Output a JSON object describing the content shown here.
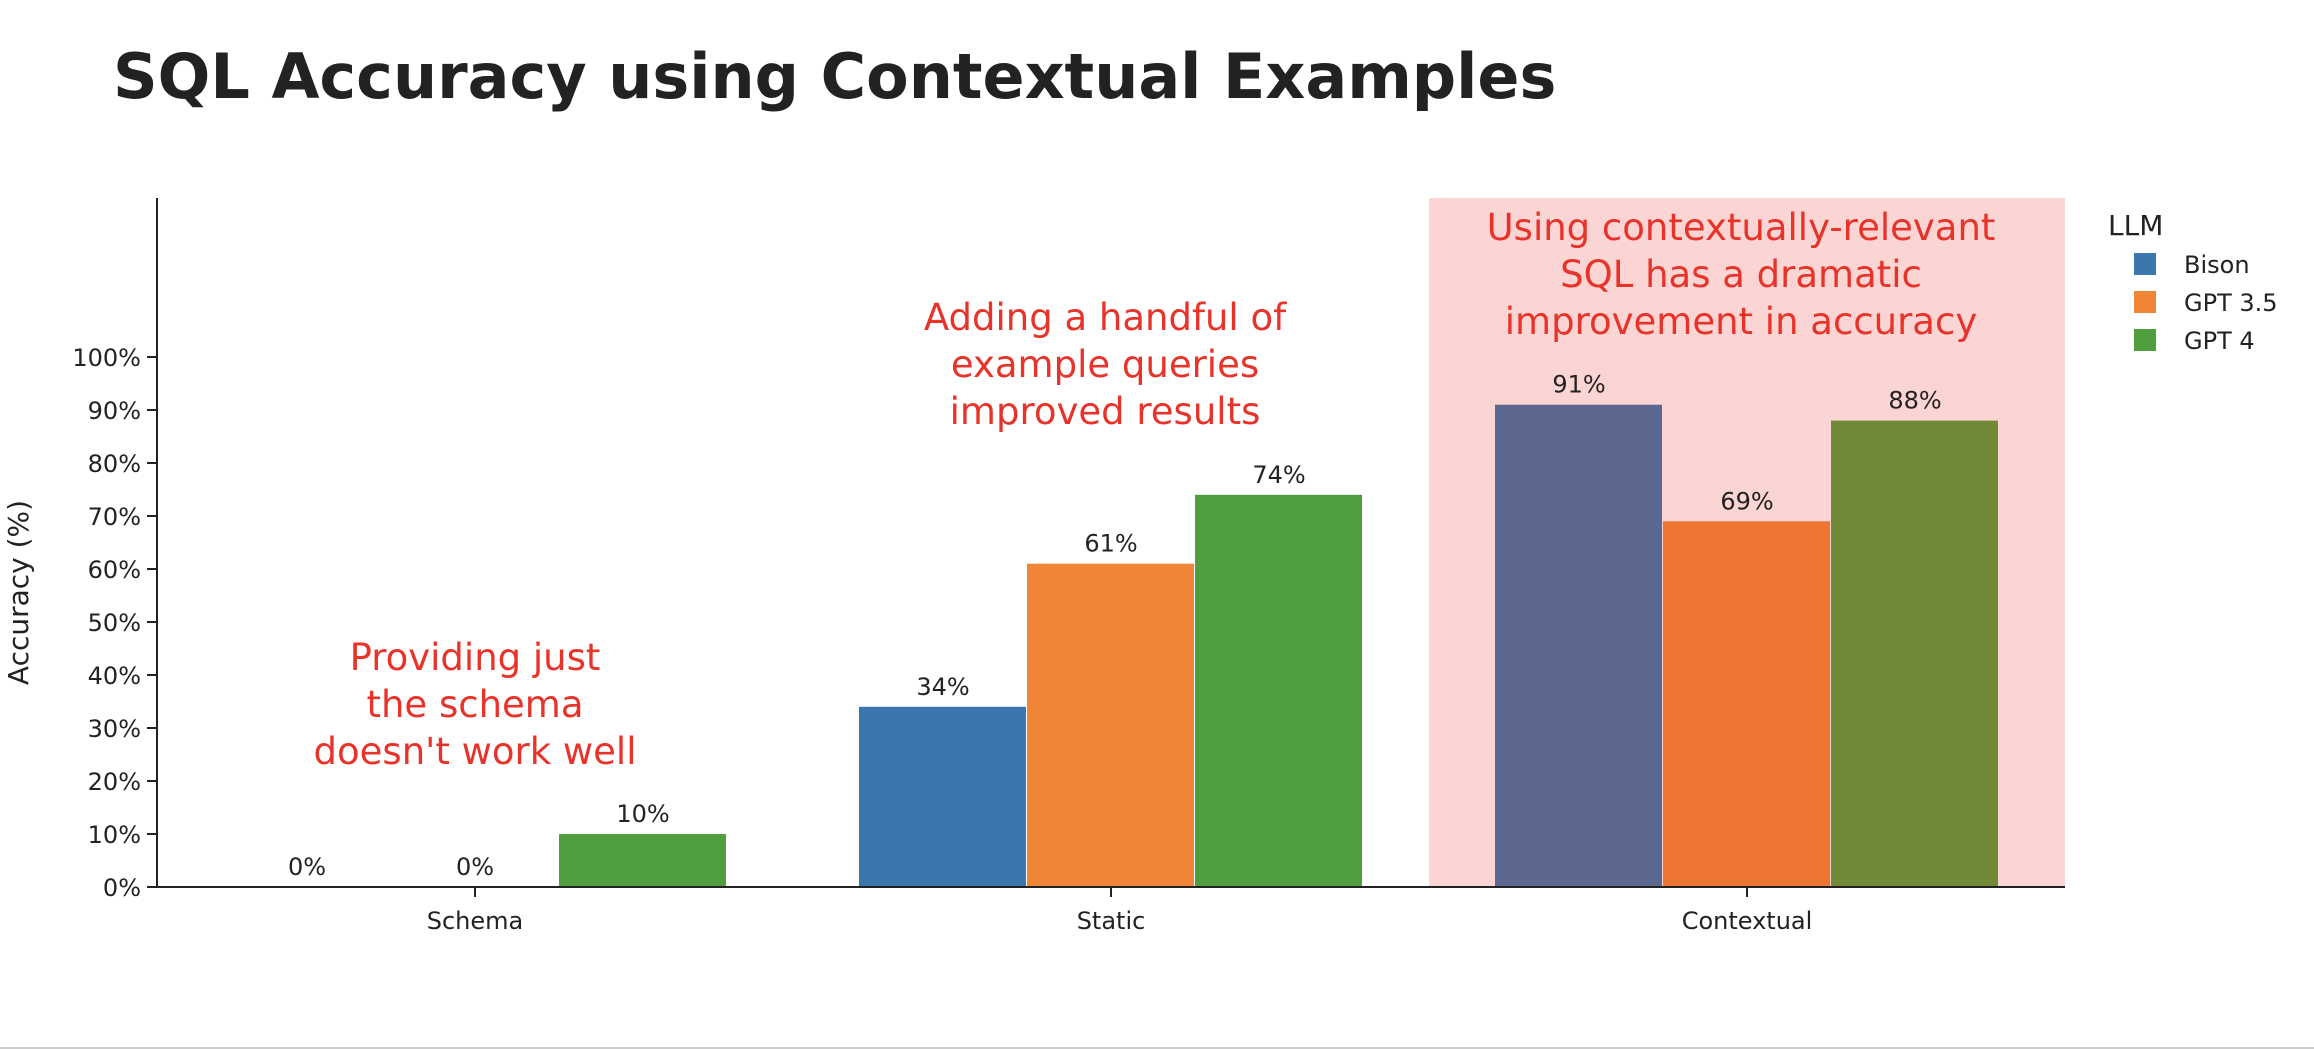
{
  "chart_data": {
    "type": "bar",
    "title": "SQL Accuracy using Contextual Examples",
    "ylabel": "Accuracy (%)",
    "xlabel": "",
    "ylim": [
      0,
      130
    ],
    "yticks": [
      0,
      10,
      20,
      30,
      40,
      50,
      60,
      70,
      80,
      90,
      100
    ],
    "ytick_suffix": "%",
    "categories": [
      "Schema",
      "Static",
      "Contextual"
    ],
    "legend": {
      "title": "LLM",
      "placement": "top-right"
    },
    "series": [
      {
        "name": "Bison",
        "color": "#3b76af",
        "values": [
          0,
          34,
          91
        ],
        "labels": [
          "0%",
          "34%",
          "91%"
        ]
      },
      {
        "name": "GPT 3.5",
        "color": "#ef8535",
        "values": [
          0,
          61,
          69
        ],
        "labels": [
          "0%",
          "61%",
          "69%"
        ]
      },
      {
        "name": "GPT 4",
        "color": "#519e3e",
        "values": [
          10,
          74,
          88
        ],
        "labels": [
          "10%",
          "74%",
          "88%"
        ]
      }
    ],
    "highlight": {
      "category": "Contextual",
      "background": "#fbd5d3",
      "bar_colors": [
        "#5d6891",
        "#ef7532",
        "#718a37"
      ]
    },
    "annotations": [
      {
        "category": "Schema",
        "lines": [
          "Providing just",
          "the schema",
          "doesn't work well"
        ],
        "color": "#e8332a"
      },
      {
        "category": "Static",
        "lines": [
          "Adding a handful of",
          "example queries",
          "improved results"
        ],
        "color": "#e8332a"
      },
      {
        "category": "Contextual",
        "lines": [
          "Using contextually-relevant",
          "SQL has a dramatic",
          "improvement in accuracy"
        ],
        "color": "#e8332a"
      }
    ],
    "grid": false
  }
}
